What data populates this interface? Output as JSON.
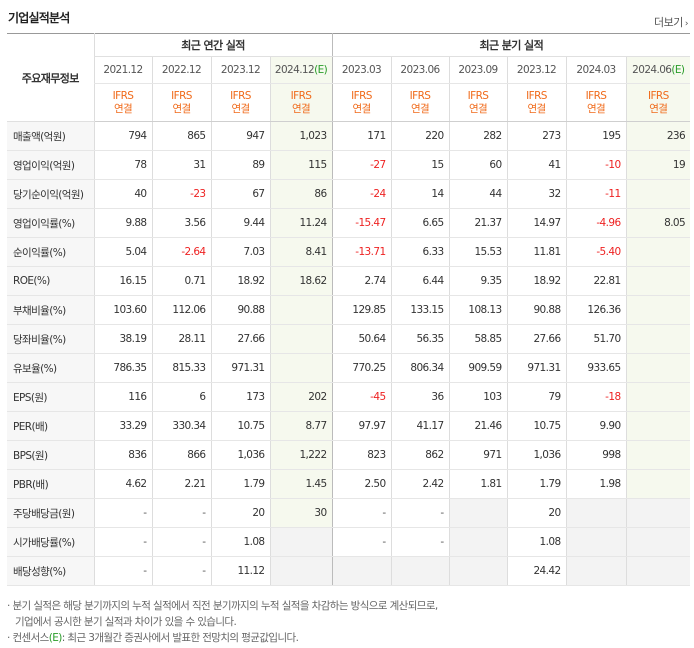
{
  "title": "기업실적분석",
  "more_label": "더보기",
  "more_icon": "chevron-right-icon",
  "stub_label": "주요재무정보",
  "group_annual": "최근 연간 실적",
  "group_quarter": "최근 분기 실적",
  "periods": [
    "2021.12",
    "2022.12",
    "2023.12",
    "2024.12(E)",
    "2023.03",
    "2023.06",
    "2023.09",
    "2023.12",
    "2024.03",
    "2024.06(E)"
  ],
  "ifrs": [
    "IFRS",
    "IFRS",
    "IFRS",
    "IFRS",
    "IFRS",
    "IFRS",
    "IFRS",
    "IFRS",
    "IFRS",
    "IFRS"
  ],
  "basis": [
    "연결",
    "연결",
    "연결",
    "연결",
    "연결",
    "연결",
    "연결",
    "연결",
    "연결",
    "연결"
  ],
  "rows": [
    {
      "label": "매출액(억원)",
      "values": [
        "794",
        "865",
        "947",
        "1,023",
        "171",
        "220",
        "282",
        "273",
        "195",
        "236"
      ]
    },
    {
      "label": "영업이익(억원)",
      "values": [
        "78",
        "31",
        "89",
        "115",
        "-27",
        "15",
        "60",
        "41",
        "-10",
        "19"
      ]
    },
    {
      "label": "당기순이익(억원)",
      "values": [
        "40",
        "-23",
        "67",
        "86",
        "-24",
        "14",
        "44",
        "32",
        "-11",
        ""
      ]
    },
    {
      "label": "영업이익률(%)",
      "values": [
        "9.88",
        "3.56",
        "9.44",
        "11.24",
        "-15.47",
        "6.65",
        "21.37",
        "14.97",
        "-4.96",
        "8.05"
      ]
    },
    {
      "label": "순이익률(%)",
      "values": [
        "5.04",
        "-2.64",
        "7.03",
        "8.41",
        "-13.71",
        "6.33",
        "15.53",
        "11.81",
        "-5.40",
        ""
      ]
    },
    {
      "label": "ROE(%)",
      "values": [
        "16.15",
        "0.71",
        "18.92",
        "18.62",
        "2.74",
        "6.44",
        "9.35",
        "18.92",
        "22.81",
        ""
      ]
    },
    {
      "label": "부채비율(%)",
      "values": [
        "103.60",
        "112.06",
        "90.88",
        "",
        "129.85",
        "133.15",
        "108.13",
        "90.88",
        "126.36",
        ""
      ]
    },
    {
      "label": "당좌비율(%)",
      "values": [
        "38.19",
        "28.11",
        "27.66",
        "",
        "50.64",
        "56.35",
        "58.85",
        "27.66",
        "51.70",
        ""
      ]
    },
    {
      "label": "유보율(%)",
      "values": [
        "786.35",
        "815.33",
        "971.31",
        "",
        "770.25",
        "806.34",
        "909.59",
        "971.31",
        "933.65",
        ""
      ]
    },
    {
      "label": "EPS(원)",
      "values": [
        "116",
        "6",
        "173",
        "202",
        "-45",
        "36",
        "103",
        "79",
        "-18",
        ""
      ]
    },
    {
      "label": "PER(배)",
      "values": [
        "33.29",
        "330.34",
        "10.75",
        "8.77",
        "97.97",
        "41.17",
        "21.46",
        "10.75",
        "9.90",
        ""
      ]
    },
    {
      "label": "BPS(원)",
      "values": [
        "836",
        "866",
        "1,036",
        "1,222",
        "823",
        "862",
        "971",
        "1,036",
        "998",
        ""
      ]
    },
    {
      "label": "PBR(배)",
      "values": [
        "4.62",
        "2.21",
        "1.79",
        "1.45",
        "2.50",
        "2.42",
        "1.81",
        "1.79",
        "1.98",
        ""
      ]
    },
    {
      "label": "주당배당금(원)",
      "values": [
        "-",
        "-",
        "20",
        "30",
        "-",
        "-",
        "",
        "20",
        "",
        ""
      ]
    },
    {
      "label": "시가배당률(%)",
      "values": [
        "-",
        "-",
        "1.08",
        "",
        "-",
        "-",
        "",
        "1.08",
        "",
        ""
      ]
    },
    {
      "label": "배당성향(%)",
      "values": [
        "-",
        "-",
        "11.12",
        "",
        "",
        "",
        "",
        "24.42",
        "",
        ""
      ]
    }
  ],
  "notes": {
    "line1": "· 분기 실적은 해당 분기까지의 누적 실적에서 직전 분기까지의 누적 실적을 차감하는 방식으로 계산되므로,",
    "line2": "기업에서 공시한 분기 실적과 차이가 있을 수 있습니다.",
    "line3_prefix": "· 컨센서스",
    "line3_e": "(E)",
    "line3_rest": ": 최근 3개월간 증권사에서 발표한 전망치의 평균값입니다."
  },
  "colors": {
    "ifrs_orange": "#f06a1a",
    "negative_red": "#ee2222",
    "estimate_green": "#2a9d2a",
    "estimate_bg": "#f6f9ee"
  }
}
